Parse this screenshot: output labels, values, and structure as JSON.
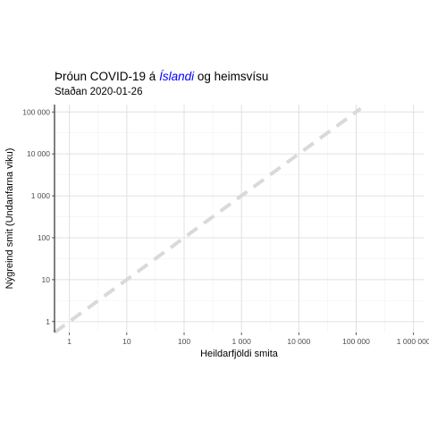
{
  "title_parts": {
    "before": "Þróun COVID-19 á ",
    "highlight": "Íslandi",
    "after": " og heimsvísu"
  },
  "subtitle": "Staðan 2020-01-26",
  "colors": {
    "highlight": "#0000ff",
    "reference_line": "#d9d9d9",
    "grid_major": "#e0e0e0",
    "grid_minor": "#f2f2f2",
    "axis_line": "#000000"
  },
  "chart_data": {
    "type": "line",
    "title": "Þróun COVID-19 á Íslandi og heimsvísu",
    "subtitle": "Staðan 2020-01-26",
    "xlabel": "Heildarfjöldi smita",
    "ylabel": "Nýgreind smit (Undanfarna viku)",
    "x_scale": "log10",
    "y_scale": "log10",
    "xlim": [
      0.55,
      1500000
    ],
    "ylim": [
      0.55,
      150000
    ],
    "x_ticks": [
      1,
      10,
      100,
      1000,
      10000,
      100000,
      1000000
    ],
    "x_tick_labels": [
      "1",
      "10",
      "100",
      "1 000",
      "10 000",
      "100 000",
      "1 000 000"
    ],
    "y_ticks": [
      1,
      10,
      100,
      1000,
      10000,
      100000
    ],
    "y_tick_labels": [
      "1",
      "10",
      "100",
      "1 000",
      "10 000",
      "100 000"
    ],
    "grid": true,
    "series": [
      {
        "style": "dashed",
        "x": [
          0.55,
          120000
        ],
        "y": [
          0.55,
          120000
        ]
      }
    ]
  }
}
